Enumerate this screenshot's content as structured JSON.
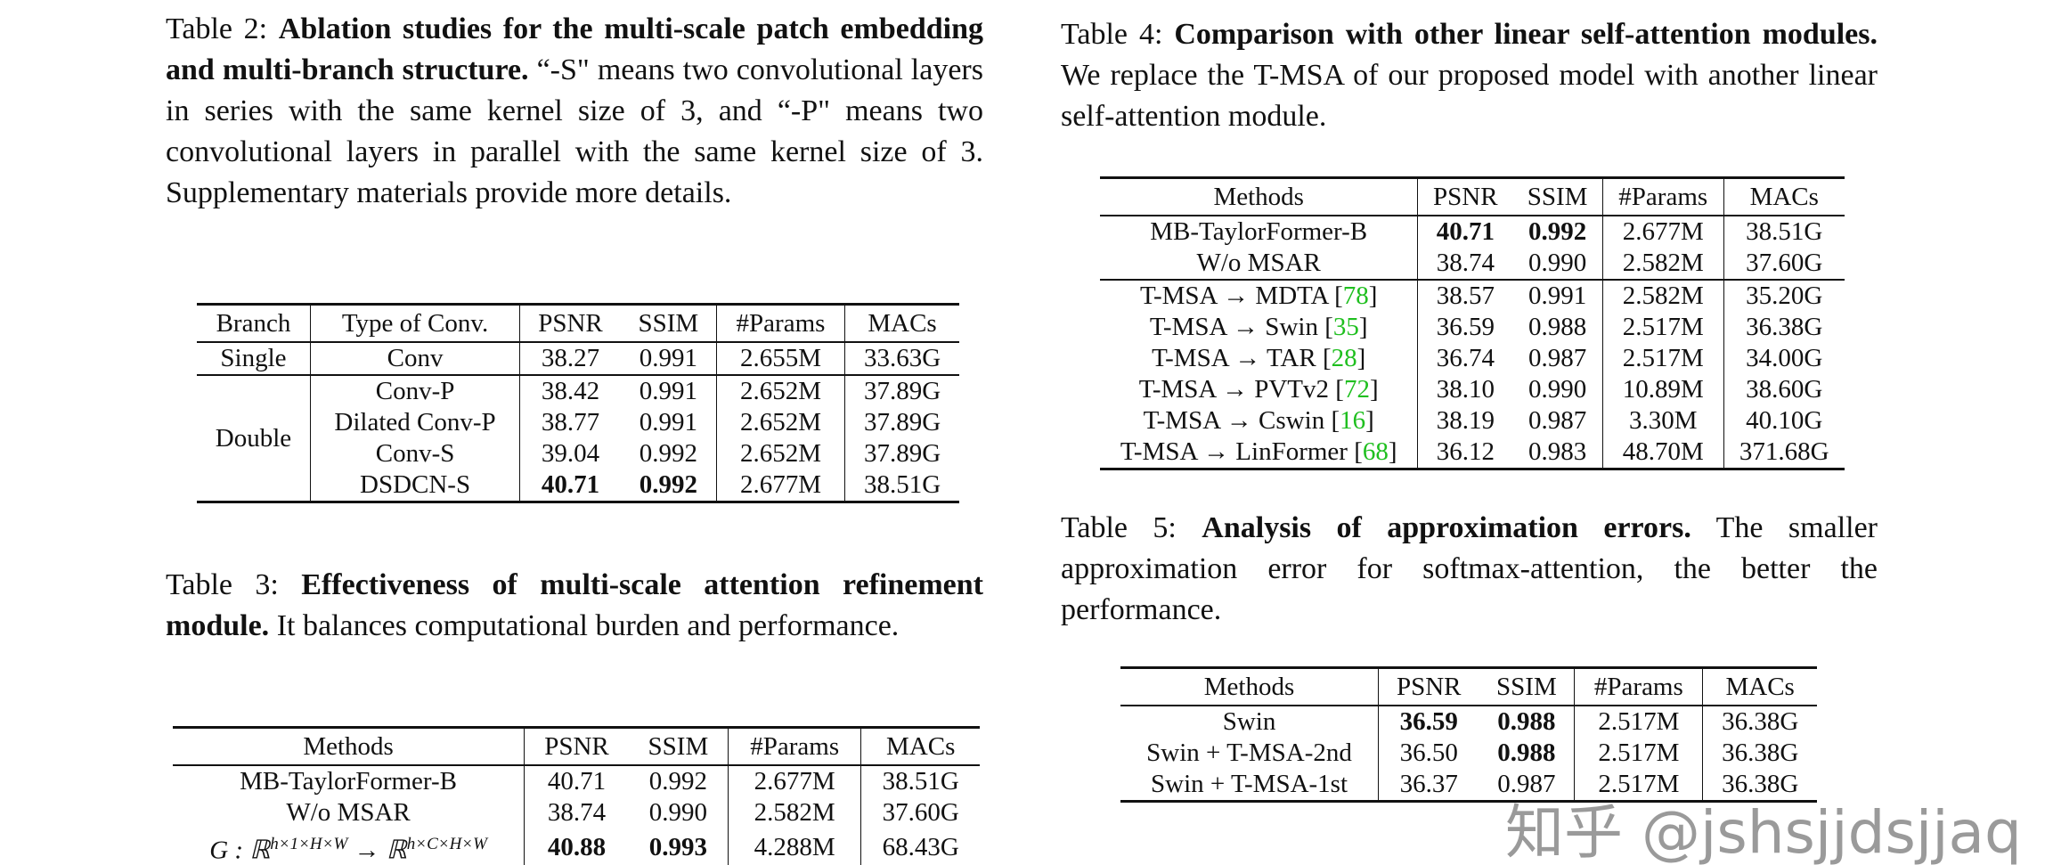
{
  "table2": {
    "caption_label": "Table 2:",
    "caption_bold": "Ablation studies for the multi-scale patch embedding and multi-branch structure.",
    "caption_rest": "“-S\" means two convolutional layers in series with the same kernel size of 3, and “-P\" means two convolutional layers in parallel with the same kernel size of 3. Supplementary materials provide more details.",
    "headers": [
      "Branch",
      "Type of Conv.",
      "PSNR",
      "SSIM",
      "#Params",
      "MACs"
    ],
    "single": {
      "branch": "Single",
      "type": "Conv",
      "psnr": "38.27",
      "ssim": "0.991",
      "params": "2.655M",
      "macs": "33.63G"
    },
    "double_label": "Double",
    "double_rows": [
      {
        "type": "Conv-P",
        "psnr": "38.42",
        "ssim": "0.991",
        "params": "2.652M",
        "macs": "37.89G"
      },
      {
        "type": "Dilated Conv-P",
        "psnr": "38.77",
        "ssim": "0.991",
        "params": "2.652M",
        "macs": "37.89G"
      },
      {
        "type": "Conv-S",
        "psnr": "39.04",
        "ssim": "0.992",
        "params": "2.652M",
        "macs": "37.89G"
      },
      {
        "type": "DSDCN-S",
        "psnr": "40.71",
        "ssim": "0.992",
        "params": "2.677M",
        "macs": "38.51G"
      }
    ]
  },
  "table3": {
    "caption_label": "Table 3:",
    "caption_bold": "Effectiveness of multi-scale attention refinement module.",
    "caption_rest": "It balances computational burden and performance.",
    "headers": [
      "Methods",
      "PSNR",
      "SSIM",
      "#Params",
      "MACs"
    ],
    "rows": [
      {
        "method": "MB-TaylorFormer-B",
        "psnr": "40.71",
        "ssim": "0.992",
        "params": "2.677M",
        "macs": "38.51G"
      },
      {
        "method": "W/o MSAR",
        "psnr": "38.74",
        "ssim": "0.990",
        "params": "2.582M",
        "macs": "37.60G"
      },
      {
        "method": "G : ℝ^{h×1×H×W} → ℝ^{h×C×H×W}",
        "psnr": "40.88",
        "ssim": "0.993",
        "params": "4.288M",
        "macs": "68.43G"
      }
    ],
    "math": {
      "g": "G : ℝ",
      "sup1": "h×1×H×W",
      "arrow": " → ℝ",
      "sup2": "h×C×H×W"
    }
  },
  "table4": {
    "caption_label": "Table 4:",
    "caption_bold": "Comparison with other linear self-attention modules.",
    "caption_rest": "We replace the T-MSA of our proposed model with another linear self-attention module.",
    "headers": [
      "Methods",
      "PSNR",
      "SSIM",
      "#Params",
      "MACs"
    ],
    "rows_top": [
      {
        "method": "MB-TaylorFormer-B",
        "psnr": "40.71",
        "ssim": "0.992",
        "params": "2.677M",
        "macs": "38.51G"
      },
      {
        "method": "W/o MSAR",
        "psnr": "38.74",
        "ssim": "0.990",
        "params": "2.582M",
        "macs": "37.60G"
      }
    ],
    "rows": [
      {
        "method": "T-MSA → MDTA",
        "cite": "78",
        "psnr": "38.57",
        "ssim": "0.991",
        "params": "2.582M",
        "macs": "35.20G"
      },
      {
        "method": "T-MSA → Swin",
        "cite": "35",
        "psnr": "36.59",
        "ssim": "0.988",
        "params": "2.517M",
        "macs": "36.38G"
      },
      {
        "method": "T-MSA → TAR",
        "cite": "28",
        "psnr": "36.74",
        "ssim": "0.987",
        "params": "2.517M",
        "macs": "34.00G"
      },
      {
        "method": "T-MSA → PVTv2",
        "cite": "72",
        "psnr": "38.10",
        "ssim": "0.990",
        "params": "10.89M",
        "macs": "38.60G"
      },
      {
        "method": "T-MSA → Cswin",
        "cite": "16",
        "psnr": "38.19",
        "ssim": "0.987",
        "params": "3.30M",
        "macs": "40.10G"
      },
      {
        "method": "T-MSA → LinFormer",
        "cite": "68",
        "psnr": "36.12",
        "ssim": "0.983",
        "params": "48.70M",
        "macs": "371.68G"
      }
    ],
    "cite_color": "#1fbf1f"
  },
  "table5": {
    "caption_label": "Table 5:",
    "caption_bold": "Analysis of approximation errors.",
    "caption_rest": "The smaller approximation error for softmax-attention, the better the performance.",
    "headers": [
      "Methods",
      "PSNR",
      "SSIM",
      "#Params",
      "MACs"
    ],
    "rows": [
      {
        "method": "Swin",
        "psnr": "36.59",
        "ssim": "0.988",
        "params": "2.517M",
        "macs": "36.38G"
      },
      {
        "method": "Swin + T-MSA-2nd",
        "psnr": "36.50",
        "ssim": "0.988",
        "params": "2.517M",
        "macs": "36.38G"
      },
      {
        "method": "Swin + T-MSA-1st",
        "psnr": "36.37",
        "ssim": "0.987",
        "params": "2.517M",
        "macs": "36.38G"
      }
    ]
  },
  "watermark": "知乎 @jshsjjdsjjaq"
}
